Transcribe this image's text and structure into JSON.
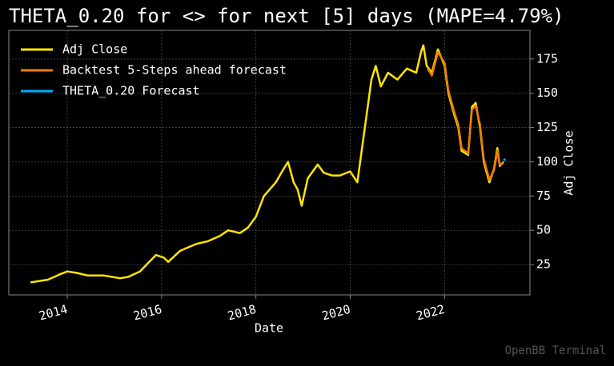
{
  "chart_data": {
    "type": "line",
    "title": "THETA_0.20 for <> for next [5] days (MAPE=4.79%)",
    "xlabel": "Date",
    "ylabel": "Adj Close",
    "watermark": "OpenBB Terminal",
    "xlim": [
      2012.76,
      2023.81
    ],
    "xticks": [
      2014,
      2016,
      2018,
      2020,
      2022
    ],
    "ylim": [
      2.9,
      195.9
    ],
    "yticks": [
      25,
      50,
      75,
      100,
      125,
      150,
      175
    ],
    "grid": true,
    "legend": "upper-left",
    "series": [
      {
        "name": "Adj Close",
        "color": "#ffe600",
        "x": [
          2013.22,
          2013.59,
          2013.85,
          2014.0,
          2014.19,
          2014.44,
          2014.78,
          2015.12,
          2015.29,
          2015.54,
          2015.71,
          2015.88,
          2016.05,
          2016.14,
          2016.39,
          2016.73,
          2016.98,
          2017.24,
          2017.41,
          2017.66,
          2017.83,
          2018.0,
          2018.17,
          2018.42,
          2018.59,
          2018.68,
          2018.8,
          2018.88,
          2018.97,
          2019.1,
          2019.31,
          2019.44,
          2019.61,
          2019.78,
          2020.0,
          2020.15,
          2020.29,
          2020.45,
          2020.54,
          2020.65,
          2020.8,
          2021.0,
          2021.2,
          2021.4,
          2021.5,
          2021.55,
          2021.62,
          2021.73,
          2021.86,
          2022.0,
          2022.08,
          2022.2,
          2022.29,
          2022.36,
          2022.5,
          2022.58,
          2022.66,
          2022.75,
          2022.83,
          2022.95,
          2023.05,
          2023.12,
          2023.17,
          2023.25
        ],
        "values": [
          12,
          14,
          18,
          20,
          19,
          17,
          17,
          15,
          16,
          20,
          26,
          32,
          30,
          27,
          35,
          40,
          42,
          46,
          50,
          48,
          52,
          60,
          75,
          85,
          95,
          100,
          85,
          80,
          68,
          88,
          98,
          92,
          90,
          90,
          93,
          85,
          120,
          160,
          170,
          155,
          165,
          160,
          168,
          165,
          180,
          185,
          170,
          165,
          182,
          170,
          150,
          135,
          125,
          108,
          105,
          140,
          143,
          125,
          100,
          85,
          95,
          110,
          97,
          100
        ]
      },
      {
        "name": "Backtest 5-Steps ahead forecast",
        "color": "#ef7d00",
        "x": [
          2021.64,
          2021.73,
          2021.86,
          2022.0,
          2022.08,
          2022.2,
          2022.29,
          2022.36,
          2022.5,
          2022.58,
          2022.66,
          2022.75,
          2022.83,
          2022.95,
          2023.05,
          2023.12,
          2023.17,
          2023.25
        ],
        "values": [
          168,
          163,
          180,
          172,
          152,
          137,
          127,
          110,
          106,
          138,
          141,
          127,
          102,
          87,
          94,
          108,
          98,
          99
        ]
      },
      {
        "name": "THETA_0.20 Forecast",
        "color": "#00aaff",
        "x": [
          2023.25,
          2023.29
        ],
        "values": [
          101,
          102
        ]
      }
    ]
  }
}
